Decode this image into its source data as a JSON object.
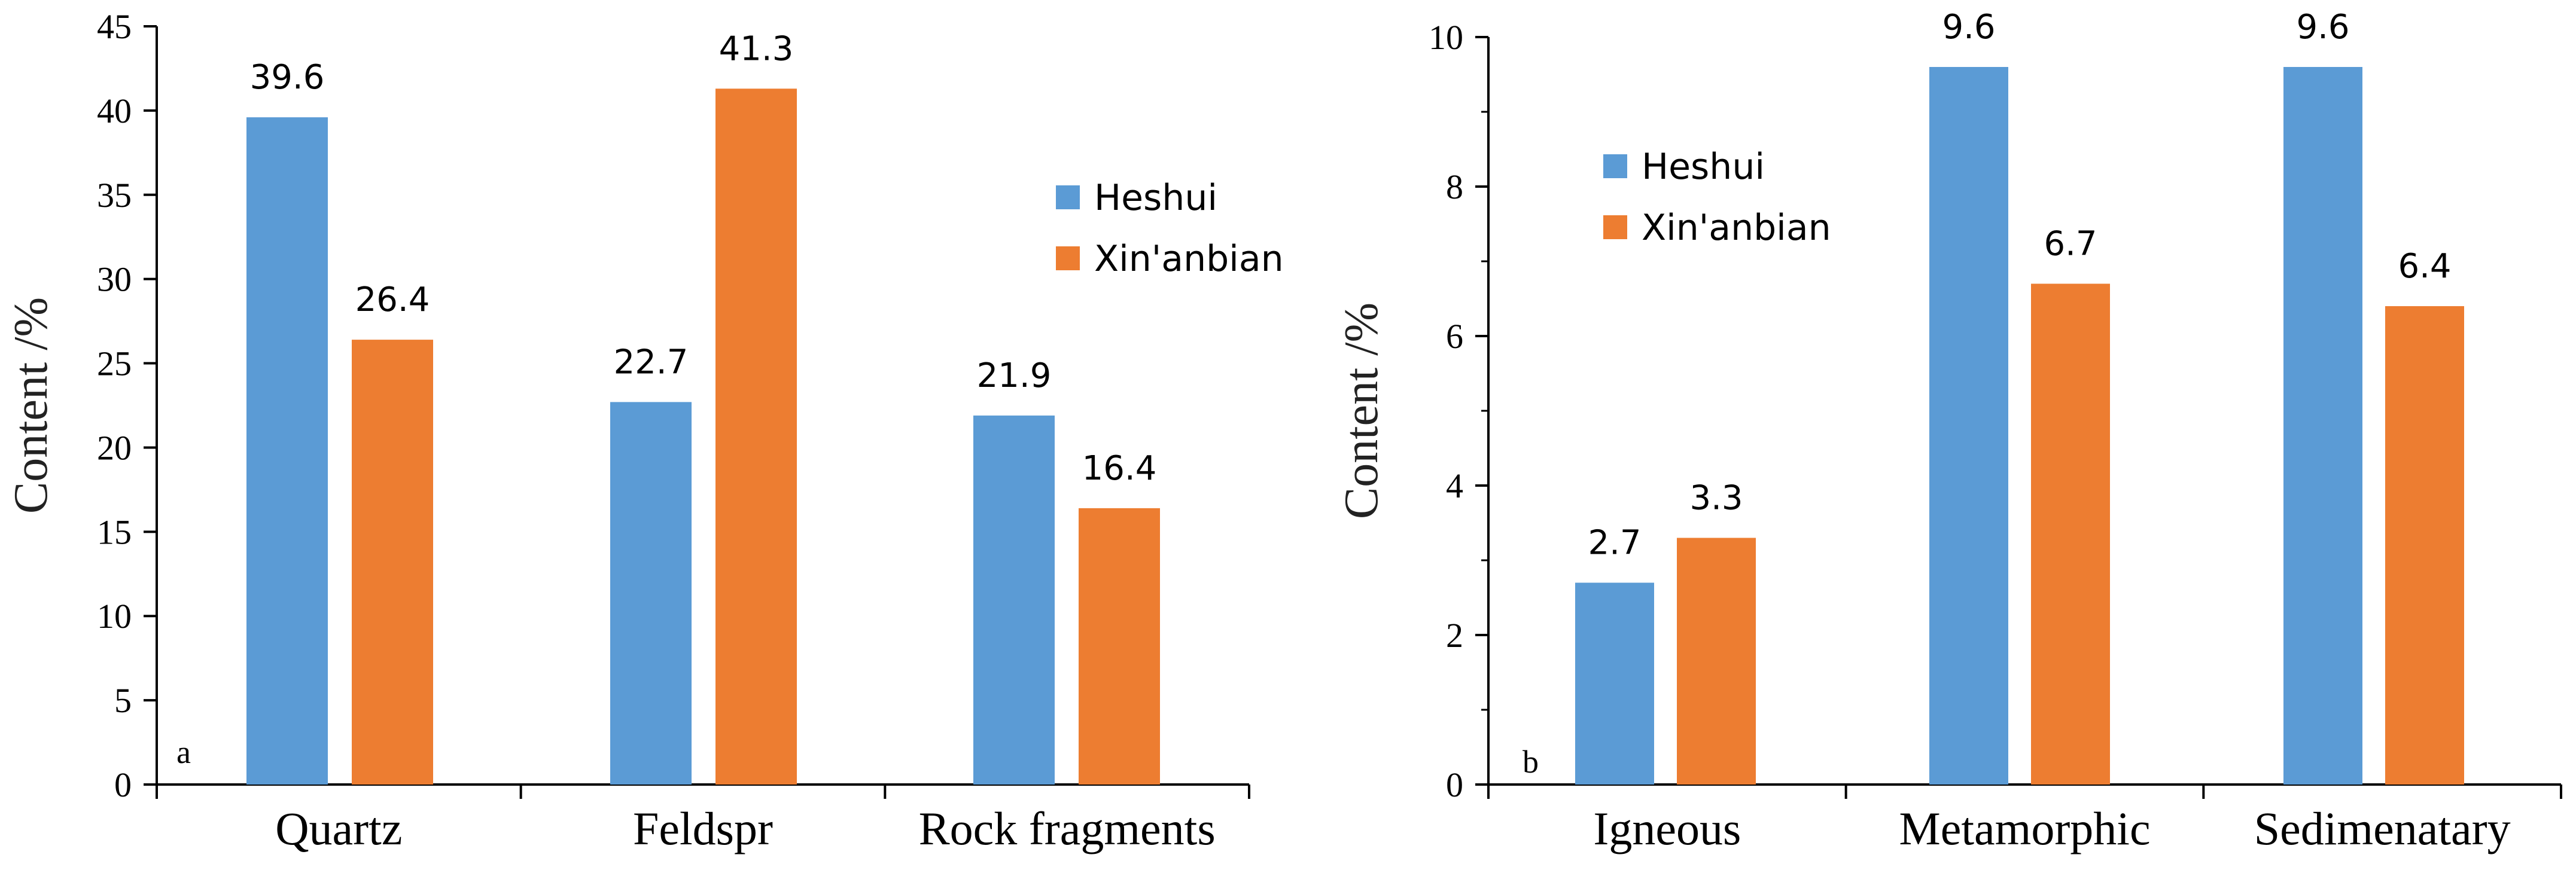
{
  "chart_data": [
    {
      "type": "bar",
      "panel": "a",
      "categories": [
        "Quartz",
        "Feldspr",
        "Rock fragments"
      ],
      "series": [
        {
          "name": "Heshui",
          "color": "#5b9bd5",
          "values": [
            39.6,
            22.7,
            21.9
          ]
        },
        {
          "name": "Xin'anbian",
          "color": "#ed7d31",
          "values": [
            26.4,
            41.3,
            16.4
          ]
        }
      ],
      "ylabel": "Content /%",
      "ylim": [
        0,
        45
      ],
      "yticks": [
        0,
        5,
        10,
        15,
        20,
        25,
        30,
        35,
        40,
        45
      ],
      "legend_position": "right",
      "grid": false
    },
    {
      "type": "bar",
      "panel": "b",
      "categories": [
        "Igneous",
        "Metamorphic",
        "Sedimenatary"
      ],
      "series": [
        {
          "name": "Heshui",
          "color": "#5b9bd5",
          "values": [
            2.7,
            9.6,
            9.6
          ]
        },
        {
          "name": "Xin'anbian",
          "color": "#ed7d31",
          "values": [
            3.3,
            6.7,
            6.4
          ]
        }
      ],
      "ylabel": "Content /%",
      "ylim": [
        0,
        10
      ],
      "yticks": [
        0,
        2,
        4,
        6,
        8,
        10
      ],
      "legend_position": "top-left",
      "grid": false
    }
  ]
}
